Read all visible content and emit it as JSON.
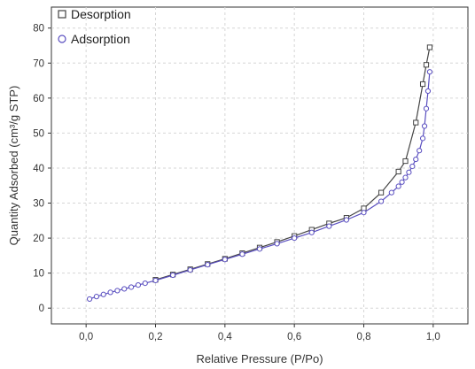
{
  "chart_data": {
    "type": "line",
    "xlabel": "Relative Pressure (P/Po)",
    "ylabel": "Quantity Adsorbed (cm³/g STP)",
    "xlim": [
      -0.1,
      1.1
    ],
    "ylim": [
      -4.5,
      86
    ],
    "xticks": [
      0.0,
      0.2,
      0.4,
      0.6,
      0.8,
      1.0
    ],
    "xtick_labels": [
      "0,0",
      "0,2",
      "0,4",
      "0,6",
      "0,8",
      "1,0"
    ],
    "yticks": [
      0,
      10,
      20,
      30,
      40,
      50,
      60,
      70,
      80
    ],
    "ytick_labels": [
      "0",
      "10",
      "20",
      "30",
      "40",
      "50",
      "60",
      "70",
      "80"
    ],
    "legend_position": "top-left",
    "series": [
      {
        "name": "Desorption",
        "marker": "square",
        "color": "#444444",
        "points": [
          [
            0.99,
            74.5
          ],
          [
            0.98,
            69.5
          ],
          [
            0.97,
            64.0
          ],
          [
            0.95,
            53.0
          ],
          [
            0.92,
            42.0
          ],
          [
            0.9,
            39.0
          ],
          [
            0.85,
            33.0
          ],
          [
            0.8,
            28.5
          ],
          [
            0.75,
            25.8
          ],
          [
            0.7,
            24.2
          ],
          [
            0.65,
            22.4
          ],
          [
            0.6,
            20.6
          ],
          [
            0.55,
            18.9
          ],
          [
            0.5,
            17.3
          ],
          [
            0.45,
            15.7
          ],
          [
            0.4,
            14.1
          ],
          [
            0.35,
            12.6
          ],
          [
            0.3,
            11.1
          ],
          [
            0.25,
            9.6
          ],
          [
            0.2,
            8.1
          ]
        ]
      },
      {
        "name": "Adsorption",
        "marker": "circle",
        "color": "#5a4fc0",
        "points": [
          [
            0.01,
            2.6
          ],
          [
            0.03,
            3.3
          ],
          [
            0.05,
            3.9
          ],
          [
            0.07,
            4.5
          ],
          [
            0.09,
            5.0
          ],
          [
            0.11,
            5.5
          ],
          [
            0.13,
            6.0
          ],
          [
            0.15,
            6.6
          ],
          [
            0.17,
            7.1
          ],
          [
            0.2,
            7.9
          ],
          [
            0.25,
            9.4
          ],
          [
            0.3,
            10.9
          ],
          [
            0.35,
            12.4
          ],
          [
            0.4,
            13.9
          ],
          [
            0.45,
            15.4
          ],
          [
            0.5,
            16.9
          ],
          [
            0.55,
            18.4
          ],
          [
            0.6,
            20.0
          ],
          [
            0.65,
            21.6
          ],
          [
            0.7,
            23.4
          ],
          [
            0.75,
            25.2
          ],
          [
            0.8,
            27.3
          ],
          [
            0.85,
            30.5
          ],
          [
            0.88,
            33.0
          ],
          [
            0.9,
            34.8
          ],
          [
            0.91,
            36.0
          ],
          [
            0.92,
            37.3
          ],
          [
            0.93,
            38.8
          ],
          [
            0.94,
            40.5
          ],
          [
            0.95,
            42.5
          ],
          [
            0.96,
            45.0
          ],
          [
            0.97,
            48.5
          ],
          [
            0.975,
            52.0
          ],
          [
            0.98,
            57.0
          ],
          [
            0.985,
            62.0
          ],
          [
            0.99,
            67.5
          ]
        ]
      }
    ]
  }
}
